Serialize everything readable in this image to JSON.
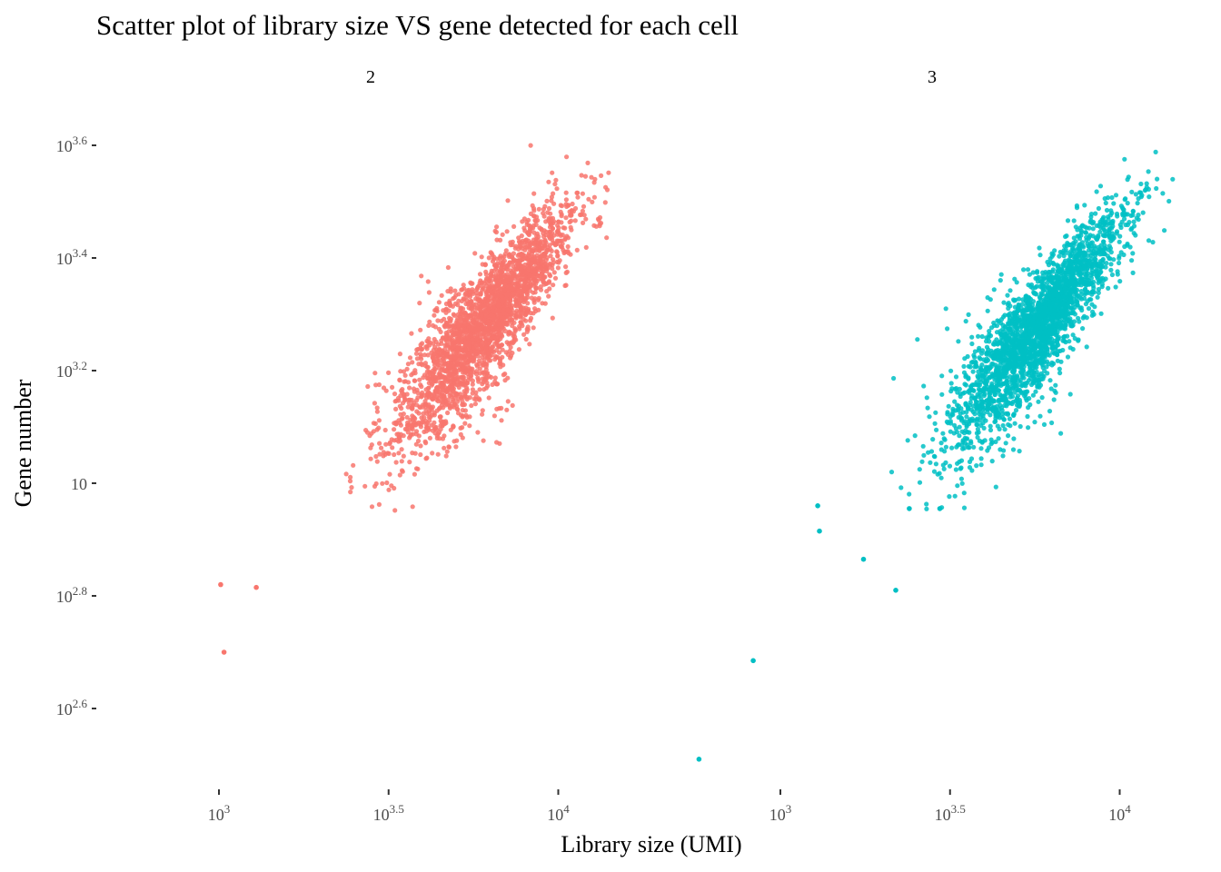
{
  "chart_data": {
    "type": "scatter",
    "title": "Scatter plot of library size VS gene detected for each cell",
    "xlabel": "Library size (UMI)",
    "ylabel": "Gene number",
    "x_scale": "log10",
    "y_scale": "log10",
    "xlim_log10": [
      2.99,
      4.18
    ],
    "ylim_log10": [
      2.45,
      3.63
    ],
    "x_ticks": [
      {
        "base": "10",
        "exp": "3"
      },
      {
        "base": "10",
        "exp": "3.5"
      },
      {
        "base": "10",
        "exp": "4"
      }
    ],
    "x_tick_values_log10": [
      3,
      3.5,
      4
    ],
    "y_ticks": [
      {
        "base": "10",
        "exp": "2.6"
      },
      {
        "base": "10",
        "exp": "2.8"
      },
      {
        "base": "10",
        "exp": ""
      },
      {
        "base": "10",
        "exp": "3.2"
      },
      {
        "base": "10",
        "exp": "3.4"
      },
      {
        "base": "10",
        "exp": "3.6"
      }
    ],
    "y_tick_values_log10": [
      2.6,
      2.8,
      3.0,
      3.2,
      3.4,
      3.6
    ],
    "grid": false,
    "legend": "none",
    "panels": [
      {
        "label": "2",
        "color": "#F8766D",
        "cluster": {
          "center_log10": [
            3.78,
            3.28
          ],
          "n": 2600,
          "slope": 0.78,
          "spread_major": 0.16,
          "spread_minor": 0.032,
          "x_range_log10": [
            3.27,
            4.18
          ]
        },
        "outliers_log10": [
          [
            3.005,
            2.82
          ],
          [
            3.015,
            2.7
          ],
          [
            3.11,
            2.815
          ]
        ]
      },
      {
        "label": "3",
        "color": "#00BFC4",
        "cluster": {
          "center_log10": [
            3.75,
            3.27
          ],
          "n": 2600,
          "slope": 0.8,
          "spread_major": 0.16,
          "spread_minor": 0.03,
          "x_range_log10": [
            3.3,
            4.18
          ]
        },
        "outliers_log10": [
          [
            2.76,
            2.51
          ],
          [
            2.92,
            2.685
          ],
          [
            3.11,
            2.96
          ],
          [
            3.115,
            2.915
          ],
          [
            3.245,
            2.865
          ],
          [
            3.34,
            2.81
          ],
          [
            3.38,
            2.955
          ],
          [
            3.47,
            2.955
          ]
        ]
      }
    ]
  }
}
